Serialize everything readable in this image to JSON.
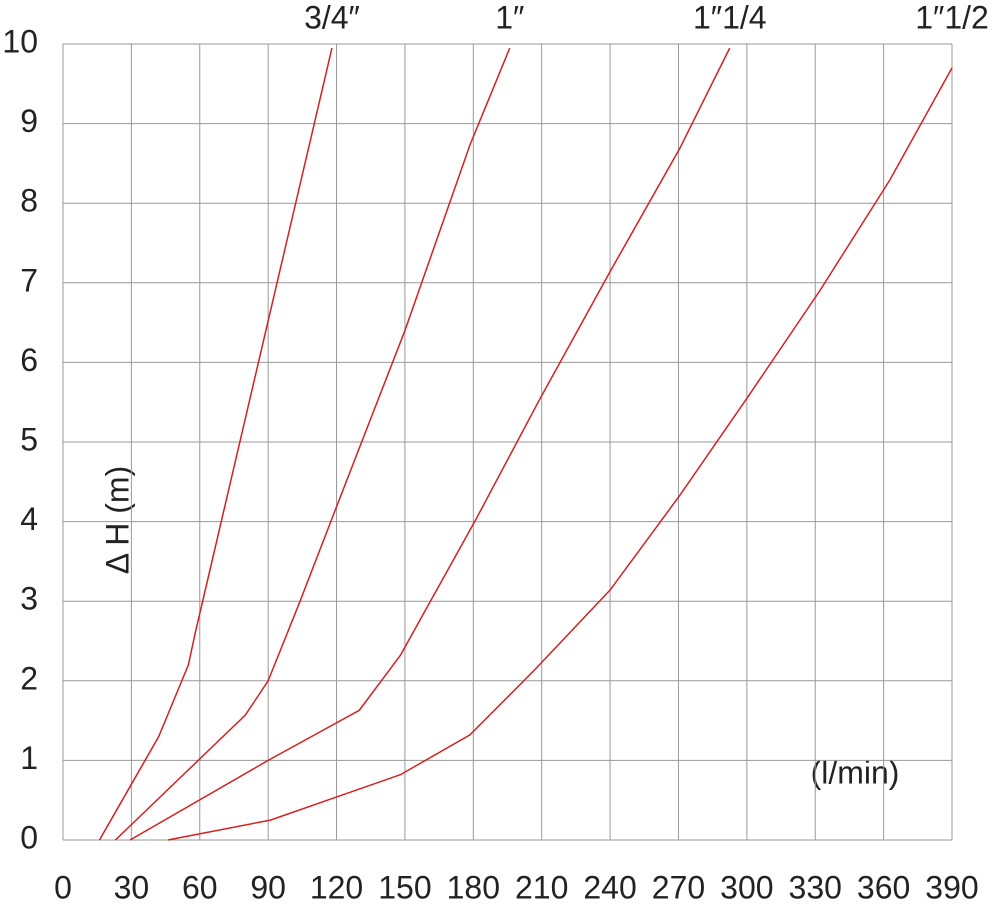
{
  "chart_data": {
    "type": "line",
    "y_label": "Δ H (m)",
    "x_label": "(l/min)",
    "xlim": [
      0,
      390
    ],
    "xticks": [
      0,
      30,
      60,
      90,
      120,
      150,
      180,
      210,
      240,
      270,
      300,
      330,
      360,
      390
    ],
    "ylim": [
      0,
      10
    ],
    "yticks": [
      0,
      1,
      2,
      3,
      4,
      5,
      6,
      7,
      8,
      9,
      10
    ],
    "grid": true,
    "series": [
      {
        "name": "3/4″",
        "color": "#d42020",
        "x": [
          16,
          42,
          55,
          58,
          89,
          118
        ],
        "values": [
          0,
          1.3,
          2.2,
          2.6,
          6.4,
          9.95
        ]
      },
      {
        "name": "1″",
        "color": "#d42020",
        "x": [
          23,
          80,
          90,
          104,
          119.5,
          150,
          178.5,
          196
        ],
        "values": [
          0,
          1.57,
          2.0,
          3.0,
          4.15,
          6.4,
          8.73,
          9.95
        ]
      },
      {
        "name": "1″1/4",
        "color": "#d42020",
        "x": [
          29.4,
          90,
          130,
          148,
          181,
          209,
          240,
          270.6,
          292.5
        ],
        "values": [
          0,
          1.0,
          1.63,
          2.32,
          4.02,
          5.53,
          7.14,
          8.69,
          9.95
        ]
      },
      {
        "name": "1″1/2",
        "color": "#d42020",
        "x": [
          46,
          91,
          148,
          178.5,
          207,
          240,
          270.6,
          301,
          332,
          362.7,
          390
        ],
        "values": [
          0,
          0.25,
          0.82,
          1.32,
          2.14,
          3.14,
          4.33,
          5.59,
          6.9,
          8.29,
          9.7
        ]
      }
    ]
  }
}
